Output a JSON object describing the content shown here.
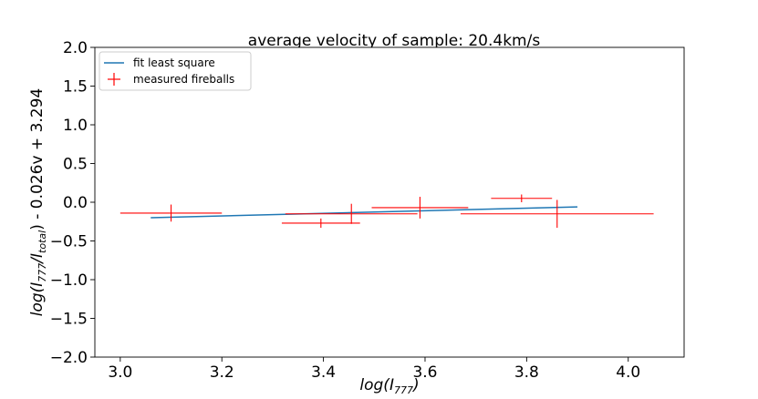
{
  "chart_data": {
    "type": "scatter",
    "title": "average velocity of sample: 20.4km/s",
    "xlabel": "log(I777)",
    "xlabel_base": "log(I",
    "xlabel_sub": "777",
    "xlabel_end": ")",
    "ylabel": "log(I777/Itotal) - 0.026v + 3.294",
    "ylabel_parts": {
      "a": "log(I",
      "a_sub": "777",
      "b": "/I",
      "b_sub": "total",
      "c": ") - 0.026v + 3.294"
    },
    "xlim": [
      2.95,
      4.11
    ],
    "ylim": [
      -2.0,
      2.0
    ],
    "xticks": [
      3.0,
      3.2,
      3.4,
      3.6,
      3.8,
      4.0
    ],
    "xtick_labels": [
      "3.0",
      "3.2",
      "3.4",
      "3.6",
      "3.8",
      "4.0"
    ],
    "yticks": [
      -2.0,
      -1.5,
      -1.0,
      -0.5,
      0.0,
      0.5,
      1.0,
      1.5,
      2.0
    ],
    "ytick_labels": [
      "−2.0",
      "−1.5",
      "−1.0",
      "−0.5",
      "0.0",
      "0.5",
      "1.0",
      "1.5",
      "2.0"
    ],
    "grid": false,
    "legend_position": "top-left",
    "series": [
      {
        "name": "fit least square",
        "kind": "line",
        "color": "#1f77b4",
        "x": [
          3.06,
          3.9
        ],
        "y": [
          -0.2,
          -0.06
        ]
      },
      {
        "name": "measured fireballs",
        "kind": "errorbar",
        "color": "#ff0000",
        "points": [
          {
            "x": 3.1,
            "y": -0.14,
            "xerr": 0.1,
            "yerr": 0.11
          },
          {
            "x": 3.395,
            "y": -0.27,
            "xerr": 0.077,
            "yerr": 0.06
          },
          {
            "x": 3.455,
            "y": -0.15,
            "xerr": 0.13,
            "yerr": 0.13
          },
          {
            "x": 3.59,
            "y": -0.07,
            "xerr": 0.095,
            "yerr": 0.14
          },
          {
            "x": 3.79,
            "y": 0.05,
            "xerr": 0.06,
            "yerr": 0.05
          },
          {
            "x": 3.86,
            "y": -0.15,
            "xerr": 0.19,
            "yerr": 0.18
          }
        ]
      }
    ]
  }
}
